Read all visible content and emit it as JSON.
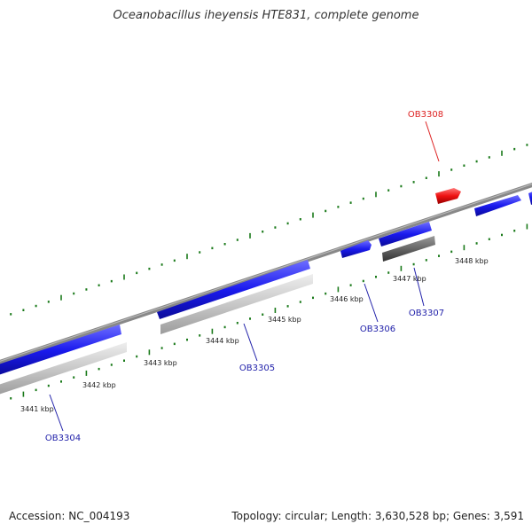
{
  "title": "Oceanobacillus iheyensis HTE831, complete genome",
  "footer": {
    "accession": "Accession: NC_004193",
    "summary": "Topology: circular; Length: 3,630,528 bp; Genes: 3,591"
  },
  "colors": {
    "forward_gene": "#1a1aee",
    "highlight_gene": "#ee1111",
    "reverse_track": "#c8c8c8",
    "reverse_track_dark": "#666666",
    "backbone": "#888888",
    "ticks": "#1a7a1a",
    "gene_label": "#2222aa",
    "highlight_label": "#dd2222"
  },
  "kbp_labels": [
    "3441 kbp",
    "3442 kbp",
    "3443 kbp",
    "3444 kbp",
    "3445 kbp",
    "3446 kbp",
    "3447 kbp",
    "3448 kbp"
  ],
  "genes": [
    {
      "id": "OB3304",
      "color": "blue"
    },
    {
      "id": "OB3305",
      "color": "blue"
    },
    {
      "id": "OB3306",
      "color": "blue"
    },
    {
      "id": "OB3307",
      "color": "blue"
    },
    {
      "id": "OB3308",
      "color": "red"
    }
  ]
}
